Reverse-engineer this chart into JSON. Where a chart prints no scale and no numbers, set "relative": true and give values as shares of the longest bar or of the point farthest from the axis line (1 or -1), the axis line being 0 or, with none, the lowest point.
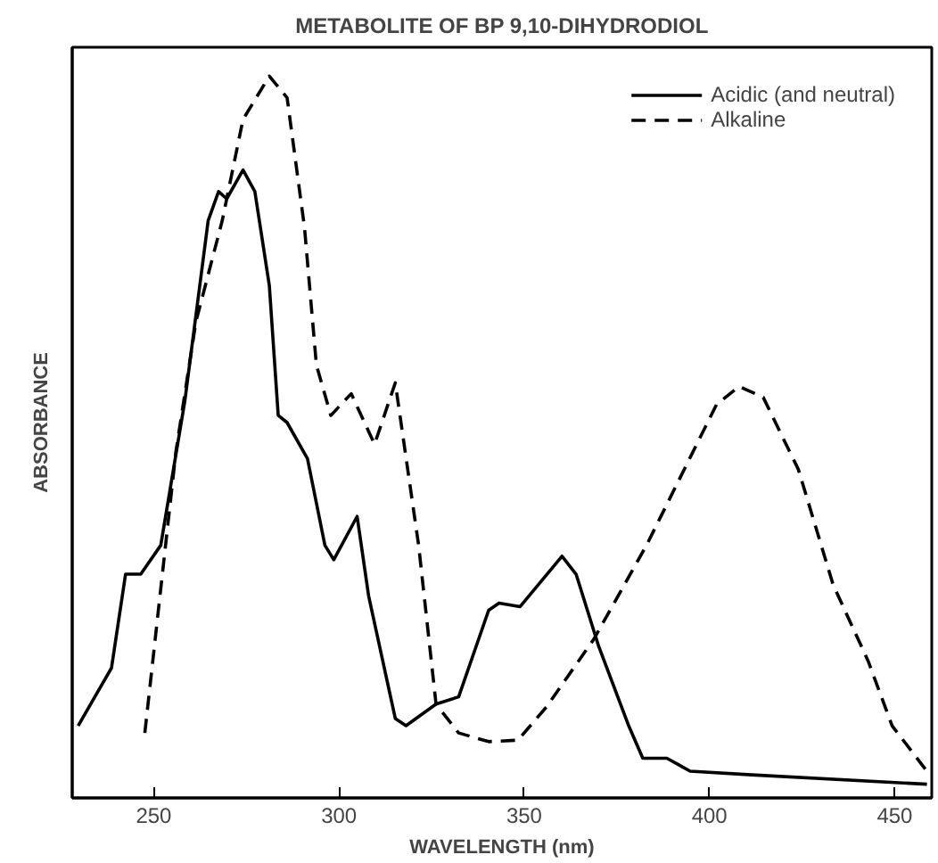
{
  "chart_data": {
    "type": "line",
    "title": "METABOLITE OF BP 9,10-DIHYDRODIOL",
    "xlabel": "WAVELENGTH (nm)",
    "ylabel": "ABSORBANCE",
    "relative": true,
    "xlim": [
      228,
      460
    ],
    "xticks": [
      250,
      300,
      350,
      400,
      450
    ],
    "grid": false,
    "legend": "top right",
    "marker": "none",
    "series": [
      {
        "name": "Acidic (and neutral)",
        "color": "#000000",
        "line_style": "solid",
        "x": [
          229.6,
          238.6,
          242.4,
          246.5,
          251.9,
          258.4,
          264.7,
          267.5,
          269.7,
          274.1,
          277.3,
          281.2,
          283.6,
          286,
          291.5,
          296.2,
          298.6,
          304.9,
          308,
          315.2,
          318.1,
          326.2,
          332.3,
          340.4,
          343.2,
          348.9,
          360.2,
          364,
          370.1,
          378.2,
          382,
          388.5,
          394.8,
          411.4,
          458.7
        ],
        "values": [
          0.1,
          0.18,
          0.31,
          0.31,
          0.35,
          0.55,
          0.8,
          0.84,
          0.83,
          0.87,
          0.84,
          0.71,
          0.53,
          0.52,
          0.47,
          0.35,
          0.33,
          0.39,
          0.28,
          0.11,
          0.1,
          0.13,
          0.14,
          0.26,
          0.27,
          0.265,
          0.335,
          0.31,
          0.21,
          0.1,
          0.055,
          0.055,
          0.037,
          0.032,
          0.019
        ]
      },
      {
        "name": "Alkaline",
        "color": "#000000",
        "line_style": "dashed",
        "x": [
          247.6,
          251.9,
          256,
          261.4,
          268.5,
          274.1,
          281.2,
          286,
          290.7,
          293.9,
          297.8,
          303.3,
          309.6,
          315.2,
          321.5,
          326.2,
          332.3,
          340.4,
          348.3,
          356,
          368.8,
          383,
          401.9,
          408,
          414.5,
          424,
          433.4,
          442.8,
          449.3,
          458.7
        ],
        "values": [
          0.09,
          0.29,
          0.48,
          0.66,
          0.8,
          0.94,
          1.0,
          0.97,
          0.79,
          0.6,
          0.53,
          0.56,
          0.49,
          0.575,
          0.35,
          0.13,
          0.09,
          0.078,
          0.08,
          0.126,
          0.22,
          0.35,
          0.545,
          0.57,
          0.555,
          0.455,
          0.295,
          0.19,
          0.1,
          0.037
        ]
      }
    ]
  }
}
